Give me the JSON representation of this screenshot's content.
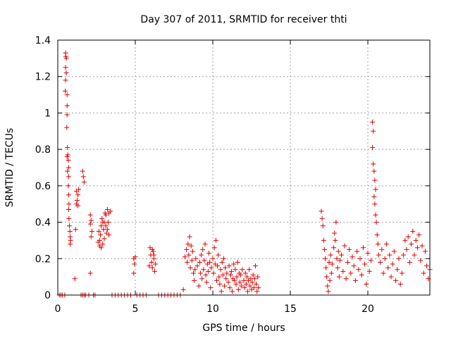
{
  "chart_data": {
    "type": "scatter",
    "title": "Day 307 of 2011, SRMTID for receiver thti",
    "xlabel": "GPS time / hours",
    "ylabel": "SRMTID / TECUs",
    "xlim": [
      0,
      24
    ],
    "ylim": [
      0,
      1.4
    ],
    "x_ticks": [
      0,
      5,
      10,
      15,
      20
    ],
    "y_ticks": [
      0,
      0.2,
      0.4,
      0.6,
      0.8,
      1,
      1.2,
      1.4
    ],
    "x_tick_labels": [
      "0",
      "5",
      "10",
      "15",
      "20"
    ],
    "y_tick_labels": [
      "0",
      "0.2",
      "0.4",
      "0.6",
      "0.8",
      "1",
      "1.2",
      "1.4"
    ],
    "grid": true,
    "marker": "plus",
    "color": "#e00000",
    "series": [
      {
        "name": "SRMTID",
        "points": [
          [
            0.1,
            0
          ],
          [
            0.2,
            0
          ],
          [
            0.3,
            0
          ],
          [
            0.45,
            0
          ],
          [
            0.5,
            1.33
          ],
          [
            0.52,
            1.31
          ],
          [
            0.55,
            1.3
          ],
          [
            0.5,
            1.25
          ],
          [
            0.55,
            1.22
          ],
          [
            0.5,
            1.18
          ],
          [
            0.48,
            1.12
          ],
          [
            0.6,
            1.1
          ],
          [
            0.6,
            1.04
          ],
          [
            0.6,
            0.99
          ],
          [
            0.58,
            0.92
          ],
          [
            0.62,
            0.81
          ],
          [
            0.65,
            0.77
          ],
          [
            0.6,
            0.76
          ],
          [
            0.68,
            0.74
          ],
          [
            0.7,
            0.7
          ],
          [
            0.62,
            0.68
          ],
          [
            0.7,
            0.65
          ],
          [
            0.68,
            0.6
          ],
          [
            0.7,
            0.55
          ],
          [
            0.72,
            0.5
          ],
          [
            0.7,
            0.47
          ],
          [
            0.72,
            0.42
          ],
          [
            0.75,
            0.38
          ],
          [
            0.78,
            0.35
          ],
          [
            0.8,
            0.32
          ],
          [
            0.82,
            0.3
          ],
          [
            0.8,
            0.28
          ],
          [
            1.1,
            0.09
          ],
          [
            1.15,
            0.36
          ],
          [
            1.2,
            0.5
          ],
          [
            1.25,
            0.52
          ],
          [
            1.3,
            0.55
          ],
          [
            1.35,
            0.58
          ],
          [
            1.2,
            0.57
          ],
          [
            1.3,
            0.49
          ],
          [
            1.5,
            0
          ],
          [
            1.6,
            0
          ],
          [
            1.7,
            0
          ],
          [
            1.8,
            0
          ],
          [
            1.6,
            0.68
          ],
          [
            1.65,
            0.65
          ],
          [
            1.7,
            0.62
          ],
          [
            2.0,
            0
          ],
          [
            2.1,
            0.44
          ],
          [
            2.15,
            0.41
          ],
          [
            2.1,
            0.39
          ],
          [
            2.2,
            0.35
          ],
          [
            2.15,
            0.32
          ],
          [
            2.1,
            0.12
          ],
          [
            2.3,
            0
          ],
          [
            2.4,
            0
          ],
          [
            2.6,
            0.29
          ],
          [
            2.65,
            0.35
          ],
          [
            2.7,
            0.27
          ],
          [
            2.75,
            0.33
          ],
          [
            2.8,
            0.38
          ],
          [
            2.85,
            0.42
          ],
          [
            2.9,
            0.4
          ],
          [
            2.95,
            0.36
          ],
          [
            3.0,
            0.31
          ],
          [
            2.9,
            0.28
          ],
          [
            3.05,
            0.45
          ],
          [
            3.1,
            0.38
          ],
          [
            3.15,
            0.34
          ],
          [
            2.7,
            0.3
          ],
          [
            2.8,
            0.26
          ],
          [
            3.0,
            0.4
          ],
          [
            3.1,
            0.44
          ],
          [
            3.2,
            0.47
          ],
          [
            3.3,
            0.45
          ],
          [
            3.25,
            0.4
          ],
          [
            3.2,
            0.36
          ],
          [
            3.3,
            0.33
          ],
          [
            3.4,
            0.46
          ],
          [
            3.5,
            0
          ],
          [
            3.7,
            0
          ],
          [
            3.9,
            0
          ],
          [
            4.1,
            0
          ],
          [
            4.3,
            0
          ],
          [
            4.5,
            0
          ],
          [
            4.7,
            0
          ],
          [
            4.9,
            0.2
          ],
          [
            5.0,
            0.21
          ],
          [
            4.95,
            0.17
          ],
          [
            4.9,
            0.12
          ],
          [
            5.1,
            0
          ],
          [
            5.3,
            0
          ],
          [
            5.5,
            0
          ],
          [
            5.7,
            0
          ],
          [
            5.9,
            0.16
          ],
          [
            5.95,
            0.26
          ],
          [
            6.0,
            0.22
          ],
          [
            6.05,
            0.18
          ],
          [
            6.1,
            0.15
          ],
          [
            6.15,
            0.24
          ],
          [
            6.2,
            0.2
          ],
          [
            6.25,
            0.13
          ],
          [
            6.3,
            0.17
          ],
          [
            6.1,
            0.25
          ],
          [
            6.2,
            0.22
          ],
          [
            6.5,
            0
          ],
          [
            6.7,
            0
          ],
          [
            6.9,
            0
          ],
          [
            7.1,
            0
          ],
          [
            7.3,
            0
          ],
          [
            7.5,
            0
          ],
          [
            7.7,
            0
          ],
          [
            7.9,
            0
          ],
          [
            8.1,
            0.03
          ],
          [
            8.2,
            0.21
          ],
          [
            8.3,
            0.25
          ],
          [
            8.35,
            0.18
          ],
          [
            8.4,
            0.28
          ],
          [
            8.45,
            0.22
          ],
          [
            8.5,
            0.32
          ],
          [
            8.55,
            0.15
          ],
          [
            8.6,
            0.27
          ],
          [
            8.65,
            0.19
          ],
          [
            8.7,
            0.24
          ],
          [
            8.75,
            0.12
          ],
          [
            8.8,
            0.08
          ],
          [
            8.85,
            0.14
          ],
          [
            8.9,
            0.2
          ],
          [
            9.0,
            0.16
          ],
          [
            9.1,
            0.05
          ],
          [
            9.15,
            0.18
          ],
          [
            9.2,
            0.12
          ],
          [
            9.25,
            0.22
          ],
          [
            9.3,
            0.09
          ],
          [
            9.35,
            0.25
          ],
          [
            9.4,
            0.14
          ],
          [
            9.45,
            0.19
          ],
          [
            9.5,
            0.28
          ],
          [
            9.55,
            0.11
          ],
          [
            9.6,
            0.07
          ],
          [
            9.65,
            0.17
          ],
          [
            9.7,
            0.13
          ],
          [
            9.75,
            0.23
          ],
          [
            9.8,
            0.18
          ],
          [
            9.85,
            0.04
          ],
          [
            9.9,
            0.15
          ],
          [
            10.0,
            0.2
          ],
          [
            10.05,
            0.12
          ],
          [
            10.1,
            0.26
          ],
          [
            10.15,
            0.17
          ],
          [
            10.2,
            0.3
          ],
          [
            10.25,
            0.08
          ],
          [
            10.3,
            0.16
          ],
          [
            10.35,
            0.22
          ],
          [
            10.4,
            0.1
          ],
          [
            10.45,
            0.06
          ],
          [
            10.5,
            0.14
          ],
          [
            10.55,
            0.02
          ],
          [
            10.6,
            0.18
          ],
          [
            10.65,
            0.11
          ],
          [
            10.7,
            0.2
          ],
          [
            10.75,
            0.05
          ],
          [
            10.8,
            0.15
          ],
          [
            10.85,
            0.09
          ],
          [
            10.9,
            0.12
          ],
          [
            11.0,
            0.07
          ],
          [
            11.05,
            0.16
          ],
          [
            11.1,
            0.04
          ],
          [
            11.15,
            0.11
          ],
          [
            11.2,
            0.13
          ],
          [
            11.25,
            0.02
          ],
          [
            11.3,
            0.09
          ],
          [
            11.35,
            0.17
          ],
          [
            11.4,
            0.08
          ],
          [
            11.45,
            0.14
          ],
          [
            11.5,
            0.06
          ],
          [
            11.55,
            0.1
          ],
          [
            11.6,
            0.18
          ],
          [
            11.65,
            0.03
          ],
          [
            11.7,
            0.12
          ],
          [
            11.75,
            0.07
          ],
          [
            11.8,
            0.11
          ],
          [
            11.85,
            0.05
          ],
          [
            11.9,
            0.14
          ],
          [
            12.0,
            0.08
          ],
          [
            12.05,
            0.04
          ],
          [
            12.1,
            0.12
          ],
          [
            12.15,
            0.06
          ],
          [
            12.2,
            0.1
          ],
          [
            12.25,
            0.02
          ],
          [
            12.3,
            0.08
          ],
          [
            12.35,
            0.14
          ],
          [
            12.4,
            0.05
          ],
          [
            12.45,
            0.09
          ],
          [
            12.5,
            0.03
          ],
          [
            12.55,
            0.07
          ],
          [
            12.6,
            0.11
          ],
          [
            12.65,
            0.04
          ],
          [
            12.7,
            0.09
          ],
          [
            12.75,
            0.16
          ],
          [
            12.8,
            0.06
          ],
          [
            12.85,
            0.02
          ],
          [
            12.9,
            0.1
          ],
          [
            12.95,
            0.04
          ],
          [
            17.0,
            0.46
          ],
          [
            17.05,
            0.42
          ],
          [
            17.1,
            0.38
          ],
          [
            17.15,
            0.3
          ],
          [
            17.2,
            0.25
          ],
          [
            17.25,
            0.2
          ],
          [
            17.3,
            0.15
          ],
          [
            17.35,
            0.1
          ],
          [
            17.4,
            0.05
          ],
          [
            17.45,
            0.02
          ],
          [
            17.5,
            0.18
          ],
          [
            17.55,
            0.08
          ],
          [
            17.6,
            0.22
          ],
          [
            17.65,
            0.12
          ],
          [
            17.7,
            0.17
          ],
          [
            17.8,
            0.26
          ],
          [
            17.85,
            0.34
          ],
          [
            17.9,
            0.3
          ],
          [
            17.95,
            0.4
          ],
          [
            18.0,
            0.2
          ],
          [
            18.05,
            0.15
          ],
          [
            18.1,
            0.24
          ],
          [
            18.15,
            0.1
          ],
          [
            18.2,
            0.19
          ],
          [
            18.3,
            0.22
          ],
          [
            18.4,
            0.13
          ],
          [
            18.5,
            0.27
          ],
          [
            18.6,
            0.09
          ],
          [
            18.7,
            0.18
          ],
          [
            18.8,
            0.25
          ],
          [
            18.9,
            0.12
          ],
          [
            19.0,
            0.21
          ],
          [
            19.1,
            0.16
          ],
          [
            19.2,
            0.08
          ],
          [
            19.3,
            0.24
          ],
          [
            19.4,
            0.14
          ],
          [
            19.5,
            0.2
          ],
          [
            19.6,
            0.11
          ],
          [
            19.7,
            0.26
          ],
          [
            19.8,
            0.17
          ],
          [
            19.9,
            0.06
          ],
          [
            20.0,
            0.23
          ],
          [
            20.1,
            0.13
          ],
          [
            20.2,
            0.19
          ],
          [
            20.3,
            0.95
          ],
          [
            20.35,
            0.9
          ],
          [
            20.3,
            0.81
          ],
          [
            20.35,
            0.72
          ],
          [
            20.4,
            0.68
          ],
          [
            20.45,
            0.63
          ],
          [
            20.5,
            0.58
          ],
          [
            20.4,
            0.54
          ],
          [
            20.45,
            0.5
          ],
          [
            20.5,
            0.44
          ],
          [
            20.55,
            0.4
          ],
          [
            20.6,
            0.33
          ],
          [
            20.65,
            0.28
          ],
          [
            20.7,
            0.22
          ],
          [
            20.8,
            0.18
          ],
          [
            20.9,
            0.25
          ],
          [
            21.0,
            0.12
          ],
          [
            21.1,
            0.2
          ],
          [
            21.2,
            0.28
          ],
          [
            21.3,
            0.15
          ],
          [
            21.4,
            0.22
          ],
          [
            21.5,
            0.1
          ],
          [
            21.6,
            0.17
          ],
          [
            21.7,
            0.24
          ],
          [
            21.8,
            0.08
          ],
          [
            21.9,
            0.14
          ],
          [
            22.0,
            0.2
          ],
          [
            22.1,
            0.06
          ],
          [
            22.2,
            0.12
          ],
          [
            22.3,
            0.22
          ],
          [
            22.4,
            0.3
          ],
          [
            22.5,
            0.25
          ],
          [
            22.6,
            0.32
          ],
          [
            22.7,
            0.18
          ],
          [
            22.8,
            0.28
          ],
          [
            22.9,
            0.35
          ],
          [
            23.0,
            0.22
          ],
          [
            23.1,
            0.3
          ],
          [
            23.2,
            0.26
          ],
          [
            23.3,
            0.33
          ],
          [
            23.4,
            0.19
          ],
          [
            23.5,
            0.27
          ],
          [
            23.6,
            0.12
          ],
          [
            23.7,
            0.24
          ],
          [
            23.8,
            0.16
          ],
          [
            23.9,
            0.09
          ],
          [
            24.0,
            0.14
          ]
        ]
      }
    ]
  }
}
